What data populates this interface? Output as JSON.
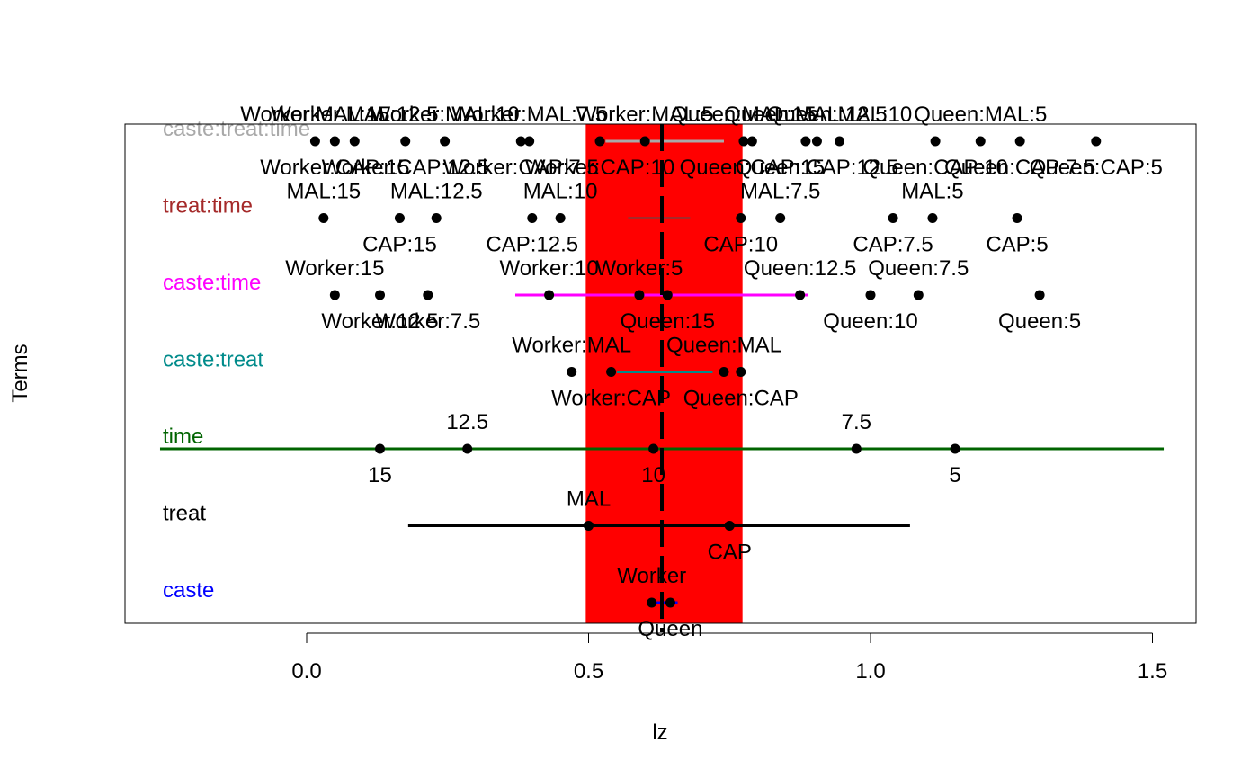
{
  "chart_data": {
    "type": "scatter",
    "xlabel": "lz",
    "ylabel": "Terms",
    "xlim": [
      -0.33,
      1.58
    ],
    "x_ticks": [
      0.0,
      0.5,
      1.0,
      1.5
    ],
    "x_tick_labels": [
      "0.0",
      "0.5",
      "1.0",
      "1.5"
    ],
    "grand_mean": 0.63,
    "band": {
      "from": 0.495,
      "to": 0.773,
      "color": "#ff0000"
    },
    "terms": [
      {
        "name": "caste",
        "color": "#0000ff",
        "range": [
          0.608,
          0.658
        ],
        "points": [
          {
            "level": "Worker",
            "x": 0.612,
            "label_pos": "above"
          },
          {
            "level": "Queen",
            "x": 0.645,
            "label_pos": "below"
          }
        ]
      },
      {
        "name": "treat",
        "color": "#000000",
        "range": [
          0.18,
          1.07
        ],
        "points": [
          {
            "level": "MAL",
            "x": 0.5,
            "label_pos": "above"
          },
          {
            "level": "CAP",
            "x": 0.75,
            "label_pos": "below"
          }
        ]
      },
      {
        "name": "time",
        "color": "#006400",
        "range": [
          -0.26,
          1.52
        ],
        "points": [
          {
            "level": "15",
            "x": 0.13,
            "label_pos": "below"
          },
          {
            "level": "12.5",
            "x": 0.285,
            "label_pos": "above"
          },
          {
            "level": "10",
            "x": 0.615,
            "label_pos": "below"
          },
          {
            "level": "7.5",
            "x": 0.975,
            "label_pos": "above"
          },
          {
            "level": "5",
            "x": 1.15,
            "label_pos": "below"
          }
        ]
      },
      {
        "name": "caste:treat",
        "color": "#008b8b",
        "range": [
          0.55,
          0.72
        ],
        "points": [
          {
            "level": "Worker:MAL",
            "x": 0.47,
            "label_pos": "above"
          },
          {
            "level": "Worker:CAP",
            "x": 0.54,
            "label_pos": "below"
          },
          {
            "level": "Queen:MAL",
            "x": 0.74,
            "label_pos": "above"
          },
          {
            "level": "Queen:CAP",
            "x": 0.77,
            "label_pos": "below"
          }
        ]
      },
      {
        "name": "caste:time",
        "color": "#ff00ff",
        "range": [
          0.37,
          0.89
        ],
        "points": [
          {
            "level": "Worker:15",
            "x": 0.05,
            "label_pos": "above"
          },
          {
            "level": "Worker:12.5",
            "x": 0.13,
            "label_pos": "below"
          },
          {
            "level": "Worker:7.5",
            "x": 0.215,
            "label_pos": "below"
          },
          {
            "level": "Worker:10",
            "x": 0.43,
            "label_pos": "above"
          },
          {
            "level": "Worker:5",
            "x": 0.59,
            "label_pos": "above"
          },
          {
            "level": "Queen:15",
            "x": 0.64,
            "label_pos": "below"
          },
          {
            "level": "Queen:12.5",
            "x": 0.875,
            "label_pos": "above"
          },
          {
            "level": "Queen:10",
            "x": 1.0,
            "label_pos": "below"
          },
          {
            "level": "Queen:7.5",
            "x": 1.085,
            "label_pos": "above"
          },
          {
            "level": "Queen:5",
            "x": 1.3,
            "label_pos": "below"
          }
        ]
      },
      {
        "name": "treat:time",
        "color": "#a52a2a",
        "range": [
          0.57,
          0.68
        ],
        "points": [
          {
            "level": "MAL:15",
            "x": 0.03,
            "label_pos": "above"
          },
          {
            "level": "CAP:15",
            "x": 0.165,
            "label_pos": "below"
          },
          {
            "level": "MAL:12.5",
            "x": 0.23,
            "label_pos": "above"
          },
          {
            "level": "CAP:12.5",
            "x": 0.4,
            "label_pos": "below"
          },
          {
            "level": "MAL:10",
            "x": 0.45,
            "label_pos": "above"
          },
          {
            "level": "CAP:10",
            "x": 0.77,
            "label_pos": "below"
          },
          {
            "level": "MAL:7.5",
            "x": 0.84,
            "label_pos": "above"
          },
          {
            "level": "CAP:7.5",
            "x": 1.04,
            "label_pos": "below"
          },
          {
            "level": "MAL:5",
            "x": 1.11,
            "label_pos": "above"
          },
          {
            "level": "CAP:5",
            "x": 1.26,
            "label_pos": "below"
          }
        ]
      },
      {
        "name": "caste:treat:time",
        "color": "#a9a9a9",
        "range": [
          0.53,
          0.74
        ],
        "points": [
          {
            "level": "Worker:MAL:15",
            "x": 0.015,
            "label_pos": "above"
          },
          {
            "level": "Worker:CAP:15",
            "x": 0.05,
            "label_pos": "below"
          },
          {
            "level": "Worker:MAL:12.5",
            "x": 0.085,
            "label_pos": "above"
          },
          {
            "level": "Worker:CAP:12.5",
            "x": 0.175,
            "label_pos": "below"
          },
          {
            "level": "Worker:MAL:10",
            "x": 0.245,
            "label_pos": "above"
          },
          {
            "level": "Worker:CAP:7.5",
            "x": 0.38,
            "label_pos": "below"
          },
          {
            "level": "Worker:MAL:7.5",
            "x": 0.395,
            "label_pos": "above"
          },
          {
            "level": "Worker:CAP:10",
            "x": 0.52,
            "label_pos": "below"
          },
          {
            "level": "Worker:MAL:5",
            "x": 0.6,
            "label_pos": "above"
          },
          {
            "level": "Queen:MAL:15",
            "x": 0.775,
            "label_pos": "above"
          },
          {
            "level": "Queen:CAP:15",
            "x": 0.79,
            "label_pos": "below"
          },
          {
            "level": "Queen:MAL:12.5",
            "x": 0.885,
            "label_pos": "above"
          },
          {
            "level": "Queen:CAP:12.5",
            "x": 0.905,
            "label_pos": "below"
          },
          {
            "level": "Queen:MAL:10",
            "x": 0.945,
            "label_pos": "above"
          },
          {
            "level": "Queen:CAP:10",
            "x": 1.115,
            "label_pos": "below"
          },
          {
            "level": "Queen:MAL:5",
            "x": 1.195,
            "label_pos": "above"
          },
          {
            "level": "Queen:CAP:7.5",
            "x": 1.265,
            "label_pos": "below"
          },
          {
            "level": "Queen:CAP:5",
            "x": 1.4,
            "label_pos": "below"
          }
        ]
      }
    ]
  }
}
